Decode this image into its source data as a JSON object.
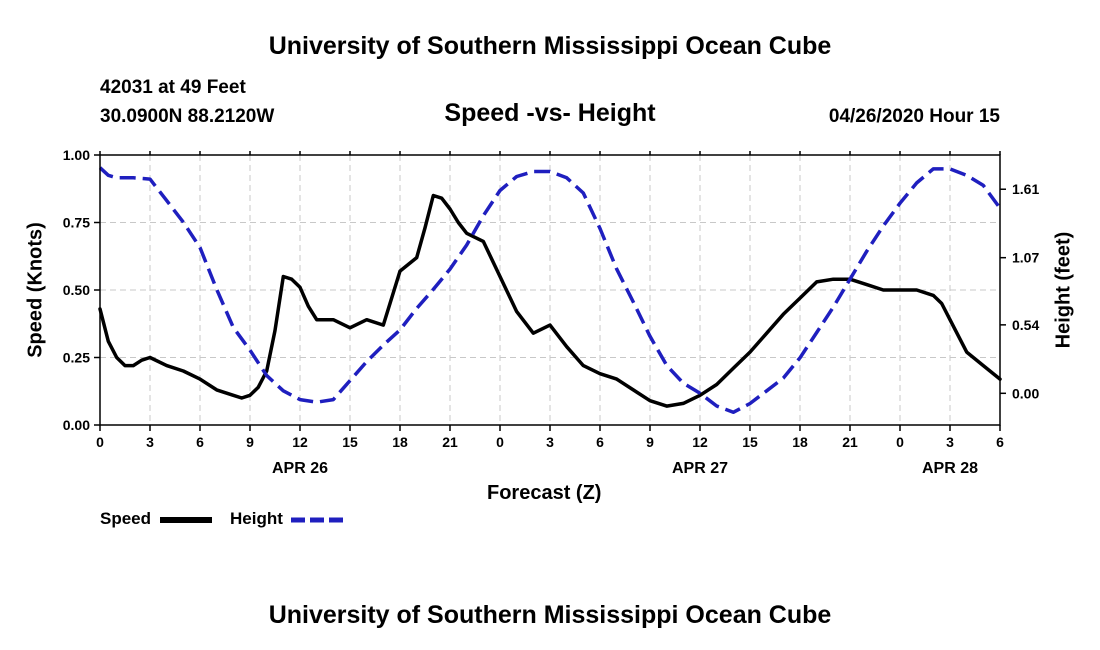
{
  "header": {
    "title": "University of Southern Mississippi Ocean Cube",
    "station": "42031 at 49 Feet",
    "location": "30.0900N 88.2120W",
    "datetime": "04/26/2020 Hour 15"
  },
  "footer": {
    "title": "University of Southern Mississippi Ocean Cube"
  },
  "legend": {
    "speed_label": "Speed",
    "height_label": "Height"
  },
  "colors": {
    "speed": "#000000",
    "height": "#1f1fbf",
    "grid": "#c8c8c8"
  },
  "chart_data": {
    "type": "line",
    "title": "Speed -vs- Height",
    "xlabel": "Forecast (Z)",
    "ylabel_left": "Speed (Knots)",
    "ylabel_right": "Height (feet)",
    "x_range_hours": [
      0,
      54
    ],
    "x_ticks": [
      {
        "h": 0,
        "label": "0"
      },
      {
        "h": 3,
        "label": "3"
      },
      {
        "h": 6,
        "label": "6"
      },
      {
        "h": 9,
        "label": "9"
      },
      {
        "h": 12,
        "label": "12"
      },
      {
        "h": 15,
        "label": "15"
      },
      {
        "h": 18,
        "label": "18"
      },
      {
        "h": 21,
        "label": "21"
      },
      {
        "h": 24,
        "label": "0"
      },
      {
        "h": 27,
        "label": "3"
      },
      {
        "h": 30,
        "label": "6"
      },
      {
        "h": 33,
        "label": "9"
      },
      {
        "h": 36,
        "label": "12"
      },
      {
        "h": 39,
        "label": "15"
      },
      {
        "h": 42,
        "label": "18"
      },
      {
        "h": 45,
        "label": "21"
      },
      {
        "h": 48,
        "label": "0"
      },
      {
        "h": 51,
        "label": "3"
      },
      {
        "h": 54,
        "label": "6"
      }
    ],
    "date_labels": [
      {
        "h": 12,
        "label": "APR 26"
      },
      {
        "h": 36,
        "label": "APR 27"
      },
      {
        "h": 51,
        "label": "APR 28"
      }
    ],
    "left_axis": {
      "ylim": [
        0,
        1.0
      ],
      "ticks": [
        {
          "v": 0.0,
          "label": "0.00"
        },
        {
          "v": 0.25,
          "label": "0.25"
        },
        {
          "v": 0.5,
          "label": "0.50"
        },
        {
          "v": 0.75,
          "label": "0.75"
        },
        {
          "v": 1.0,
          "label": "1.00"
        }
      ]
    },
    "right_axis": {
      "ylim": [
        -0.25,
        1.88
      ],
      "ticks": [
        {
          "v": 0.0,
          "label": "0.00"
        },
        {
          "v": 0.54,
          "label": "0.54"
        },
        {
          "v": 1.07,
          "label": "1.07"
        },
        {
          "v": 1.61,
          "label": "1.61"
        }
      ]
    },
    "series": [
      {
        "name": "Speed",
        "axis": "left",
        "style": "solid",
        "x": [
          0,
          0.5,
          1,
          1.5,
          2,
          2.5,
          3,
          4,
          5,
          6,
          7,
          8,
          8.5,
          9,
          9.5,
          10,
          10.5,
          11,
          11.5,
          12,
          12.5,
          13,
          14,
          15,
          16,
          17,
          18,
          19,
          19.5,
          20,
          20.5,
          21,
          21.5,
          22,
          23,
          24,
          25,
          26,
          27,
          28,
          29,
          30,
          31,
          32,
          33,
          34,
          35,
          36,
          37,
          38,
          39,
          40,
          41,
          42,
          43,
          44,
          44.5,
          45,
          46,
          47,
          48,
          49,
          50,
          50.5,
          51,
          52,
          53,
          54
        ],
        "values": [
          0.43,
          0.31,
          0.25,
          0.22,
          0.22,
          0.24,
          0.25,
          0.22,
          0.2,
          0.17,
          0.13,
          0.11,
          0.1,
          0.11,
          0.14,
          0.2,
          0.35,
          0.55,
          0.54,
          0.51,
          0.44,
          0.39,
          0.39,
          0.36,
          0.39,
          0.37,
          0.57,
          0.62,
          0.73,
          0.85,
          0.84,
          0.8,
          0.75,
          0.71,
          0.68,
          0.55,
          0.42,
          0.34,
          0.37,
          0.29,
          0.22,
          0.19,
          0.17,
          0.13,
          0.09,
          0.07,
          0.08,
          0.11,
          0.15,
          0.21,
          0.27,
          0.34,
          0.41,
          0.47,
          0.53,
          0.54,
          0.54,
          0.54,
          0.52,
          0.5,
          0.5,
          0.5,
          0.48,
          0.45,
          0.39,
          0.27,
          0.22,
          0.17
        ]
      },
      {
        "name": "Height",
        "axis": "right",
        "style": "dashed",
        "x": [
          0,
          0.5,
          1,
          2,
          3,
          4,
          5,
          6,
          7,
          8,
          9,
          10,
          11,
          12,
          13,
          14,
          15,
          16,
          17,
          18,
          19,
          20,
          21,
          22,
          23,
          24,
          25,
          26,
          27,
          28,
          29,
          30,
          31,
          32,
          33,
          34,
          35,
          36,
          37,
          38,
          39,
          40,
          41,
          42,
          43,
          44,
          45,
          46,
          47,
          48,
          49,
          50,
          51,
          52,
          53,
          54
        ],
        "values": [
          1.78,
          1.72,
          1.7,
          1.7,
          1.69,
          1.52,
          1.35,
          1.15,
          0.82,
          0.52,
          0.34,
          0.14,
          0.02,
          -0.05,
          -0.07,
          -0.05,
          0.1,
          0.25,
          0.38,
          0.5,
          0.67,
          0.82,
          0.98,
          1.17,
          1.4,
          1.6,
          1.71,
          1.75,
          1.75,
          1.7,
          1.58,
          1.3,
          0.98,
          0.72,
          0.45,
          0.22,
          0.08,
          0.0,
          -0.1,
          -0.15,
          -0.08,
          0.02,
          0.12,
          0.28,
          0.48,
          0.68,
          0.9,
          1.12,
          1.32,
          1.5,
          1.66,
          1.77,
          1.77,
          1.72,
          1.64,
          1.46
        ]
      }
    ]
  }
}
